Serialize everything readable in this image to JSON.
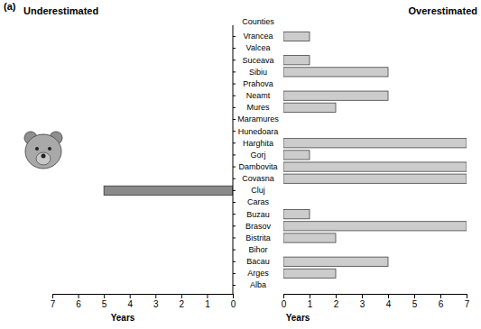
{
  "chart_data": {
    "type": "bar",
    "orientation": "horizontal",
    "title": "(a)",
    "y_label": "Counties",
    "x_label": "Years",
    "categories": [
      "Vrancea",
      "Valcea",
      "Suceava",
      "Sibiu",
      "Prahova",
      "Neamt",
      "Mures",
      "Maramures",
      "Hunedoara",
      "Harghita",
      "Gorj",
      "Dambovita",
      "Covasna",
      "Cluj",
      "Caras",
      "Buzau",
      "Brasov",
      "Bistrita",
      "Bihor",
      "Bacau",
      "Arges",
      "Alba"
    ],
    "series": [
      {
        "name": "Underestimated",
        "color": "#8a8a8a",
        "values": [
          0,
          0,
          0,
          0,
          0,
          0,
          0,
          0,
          0,
          0,
          0,
          0,
          0,
          5,
          0,
          0,
          0,
          0,
          0,
          0,
          0,
          0
        ]
      },
      {
        "name": "Overestimated",
        "color": "#cccccc",
        "values": [
          1,
          0,
          1,
          4,
          0,
          4,
          2,
          0,
          0,
          7,
          1,
          7,
          7,
          0,
          0,
          1,
          7,
          2,
          0,
          4,
          2,
          0
        ]
      }
    ],
    "xlim": [
      0,
      7
    ],
    "xticks": [
      0,
      1,
      2,
      3,
      4,
      5,
      6,
      7
    ]
  }
}
